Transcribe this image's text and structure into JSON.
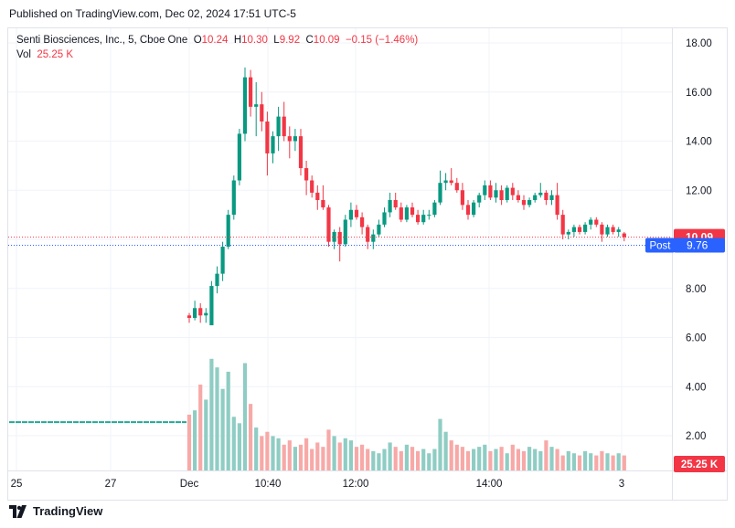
{
  "published": "Published on TradingView.com, Dec 02, 2024 17:51 UTC-5",
  "legend": {
    "symbol": "Senti Biosciences, Inc., 5, Cboe One",
    "open_label": "O",
    "open": "10.24",
    "high_label": "H",
    "high": "10.30",
    "low_label": "L",
    "low": "9.92",
    "close_label": "C",
    "close": "10.09",
    "change": "−0.15 (−1.46%)",
    "vol_label": "Vol",
    "vol": "25.25 K"
  },
  "footer": {
    "brand": "TradingView",
    "logo": "tradingview-logo-icon"
  },
  "colors": {
    "up": "#089981",
    "down": "#f23645",
    "vol_up": "#8fcdc4",
    "vol_down": "#f7a9a7",
    "last_price_badge": "#f23645",
    "post_badge": "#2962ff",
    "volume_badge": "#f23645"
  },
  "chart_data": {
    "type": "candlestick",
    "y_axis": {
      "ticks": [
        "18.00",
        "16.00",
        "14.00",
        "12.00",
        "10.00",
        "8.00",
        "6.00",
        "4.00",
        "2.00"
      ],
      "range": [
        0,
        18.5
      ]
    },
    "x_axis": {
      "ticks": [
        "25",
        "27",
        "Dec",
        "10:40",
        "12:00",
        "14:00",
        "3"
      ]
    },
    "price_labels": {
      "last": "10.09",
      "post_label": "Post",
      "post": "9.76",
      "volume": "25.25 K"
    },
    "prior_days_volume_level": 2.25,
    "candles": [
      [
        6.9,
        7.0,
        6.6,
        6.8
      ],
      [
        6.8,
        7.5,
        6.7,
        7.2
      ],
      [
        7.2,
        7.4,
        6.6,
        6.9
      ],
      [
        6.9,
        7.2,
        6.6,
        7.0
      ],
      [
        6.5,
        8.3,
        6.5,
        8.1
      ],
      [
        8.1,
        8.9,
        7.8,
        8.6
      ],
      [
        8.6,
        9.9,
        8.3,
        9.7
      ],
      [
        9.7,
        11.2,
        9.6,
        11.0
      ],
      [
        11.0,
        12.6,
        10.8,
        12.4
      ],
      [
        12.4,
        14.5,
        12.2,
        14.3
      ],
      [
        14.3,
        17.0,
        14.0,
        16.6
      ],
      [
        16.6,
        16.9,
        15.0,
        15.4
      ],
      [
        15.4,
        16.4,
        14.2,
        15.5
      ],
      [
        15.5,
        16.0,
        14.4,
        14.8
      ],
      [
        14.8,
        15.2,
        12.6,
        13.5
      ],
      [
        13.5,
        14.4,
        13.1,
        14.2
      ],
      [
        14.2,
        15.4,
        13.6,
        15.0
      ],
      [
        15.0,
        15.6,
        14.0,
        14.2
      ],
      [
        14.2,
        14.6,
        13.3,
        14.0
      ],
      [
        14.0,
        14.5,
        13.6,
        14.2
      ],
      [
        14.2,
        14.5,
        12.6,
        12.9
      ],
      [
        12.9,
        13.2,
        11.8,
        12.4
      ],
      [
        12.4,
        12.6,
        11.7,
        11.9
      ],
      [
        11.9,
        12.2,
        11.2,
        11.6
      ],
      [
        11.6,
        12.2,
        11.2,
        11.3
      ],
      [
        11.3,
        11.4,
        9.7,
        9.9
      ],
      [
        9.9,
        10.4,
        9.6,
        10.3
      ],
      [
        10.3,
        10.5,
        9.1,
        9.8
      ],
      [
        9.8,
        11.0,
        9.7,
        10.8
      ],
      [
        10.8,
        11.5,
        10.5,
        11.2
      ],
      [
        11.2,
        11.4,
        10.8,
        10.9
      ],
      [
        10.9,
        11.1,
        10.2,
        10.5
      ],
      [
        10.5,
        10.6,
        9.6,
        9.9
      ],
      [
        9.9,
        10.4,
        9.6,
        10.2
      ],
      [
        10.2,
        10.8,
        10.1,
        10.6
      ],
      [
        10.6,
        11.3,
        10.5,
        11.1
      ],
      [
        11.1,
        11.9,
        10.9,
        11.6
      ],
      [
        11.6,
        11.9,
        11.2,
        11.3
      ],
      [
        11.3,
        11.5,
        10.7,
        10.8
      ],
      [
        10.8,
        11.4,
        10.7,
        11.3
      ],
      [
        11.3,
        11.5,
        10.9,
        11.0
      ],
      [
        11.0,
        11.2,
        10.6,
        10.7
      ],
      [
        10.7,
        11.2,
        10.6,
        11.0
      ],
      [
        11.0,
        11.2,
        10.8,
        11.0
      ],
      [
        11.0,
        11.6,
        10.9,
        11.5
      ],
      [
        11.5,
        12.8,
        11.4,
        12.3
      ],
      [
        12.3,
        12.7,
        12.0,
        12.4
      ],
      [
        12.4,
        12.9,
        12.2,
        12.3
      ],
      [
        12.3,
        12.5,
        11.9,
        12.0
      ],
      [
        12.0,
        12.3,
        11.2,
        11.4
      ],
      [
        11.4,
        11.6,
        10.8,
        11.0
      ],
      [
        11.0,
        11.6,
        10.9,
        11.5
      ],
      [
        11.5,
        11.9,
        11.3,
        11.8
      ],
      [
        11.8,
        12.4,
        11.6,
        12.2
      ],
      [
        12.2,
        12.4,
        11.6,
        11.7
      ],
      [
        11.7,
        12.3,
        11.5,
        12.0
      ],
      [
        12.0,
        12.2,
        11.4,
        11.6
      ],
      [
        11.6,
        12.2,
        11.5,
        12.1
      ],
      [
        12.1,
        12.3,
        11.6,
        11.8
      ],
      [
        11.8,
        12.0,
        11.5,
        11.6
      ],
      [
        11.6,
        11.8,
        11.2,
        11.4
      ],
      [
        11.4,
        11.7,
        11.3,
        11.6
      ],
      [
        11.6,
        11.9,
        11.5,
        11.8
      ],
      [
        11.8,
        12.3,
        11.7,
        11.9
      ],
      [
        11.9,
        12.0,
        11.4,
        11.6
      ],
      [
        11.6,
        12.0,
        11.4,
        11.8
      ],
      [
        11.8,
        12.3,
        10.8,
        11.0
      ],
      [
        11.0,
        11.2,
        10.0,
        10.2
      ],
      [
        10.2,
        10.4,
        10.0,
        10.3
      ],
      [
        10.3,
        10.6,
        10.1,
        10.5
      ],
      [
        10.5,
        10.6,
        10.2,
        10.3
      ],
      [
        10.3,
        10.7,
        10.2,
        10.6
      ],
      [
        10.6,
        10.9,
        10.4,
        10.8
      ],
      [
        10.8,
        10.9,
        10.5,
        10.6
      ],
      [
        10.6,
        10.7,
        9.9,
        10.2
      ],
      [
        10.2,
        10.6,
        10.1,
        10.5
      ],
      [
        10.5,
        10.6,
        10.2,
        10.3
      ],
      [
        10.3,
        10.5,
        10.1,
        10.4
      ],
      [
        10.24,
        10.3,
        9.92,
        10.09
      ]
    ],
    "volume": [
      2.6,
      2.8,
      4.0,
      3.3,
      5.2,
      4.8,
      3.8,
      4.6,
      2.5,
      2.2,
      5.0,
      3.1,
      2.0,
      1.6,
      1.8,
      1.6,
      1.5,
      1.2,
      1.4,
      1.1,
      1.2,
      1.5,
      1.0,
      1.3,
      1.1,
      1.9,
      1.6,
      1.3,
      1.5,
      1.4,
      1.1,
      1.2,
      1.0,
      0.9,
      0.8,
      1.0,
      1.3,
      1.1,
      0.9,
      1.2,
      1.1,
      0.9,
      1.0,
      0.8,
      1.0,
      2.4,
      1.8,
      1.4,
      1.2,
      1.1,
      0.9,
      1.0,
      1.1,
      1.2,
      0.9,
      1.0,
      1.1,
      0.8,
      1.2,
      1.0,
      0.9,
      1.1,
      1.0,
      0.9,
      1.4,
      1.1,
      1.0,
      0.7,
      0.9,
      0.8,
      0.7,
      0.9,
      0.8,
      0.7,
      0.9,
      0.8,
      0.7,
      0.8,
      0.7
    ]
  }
}
